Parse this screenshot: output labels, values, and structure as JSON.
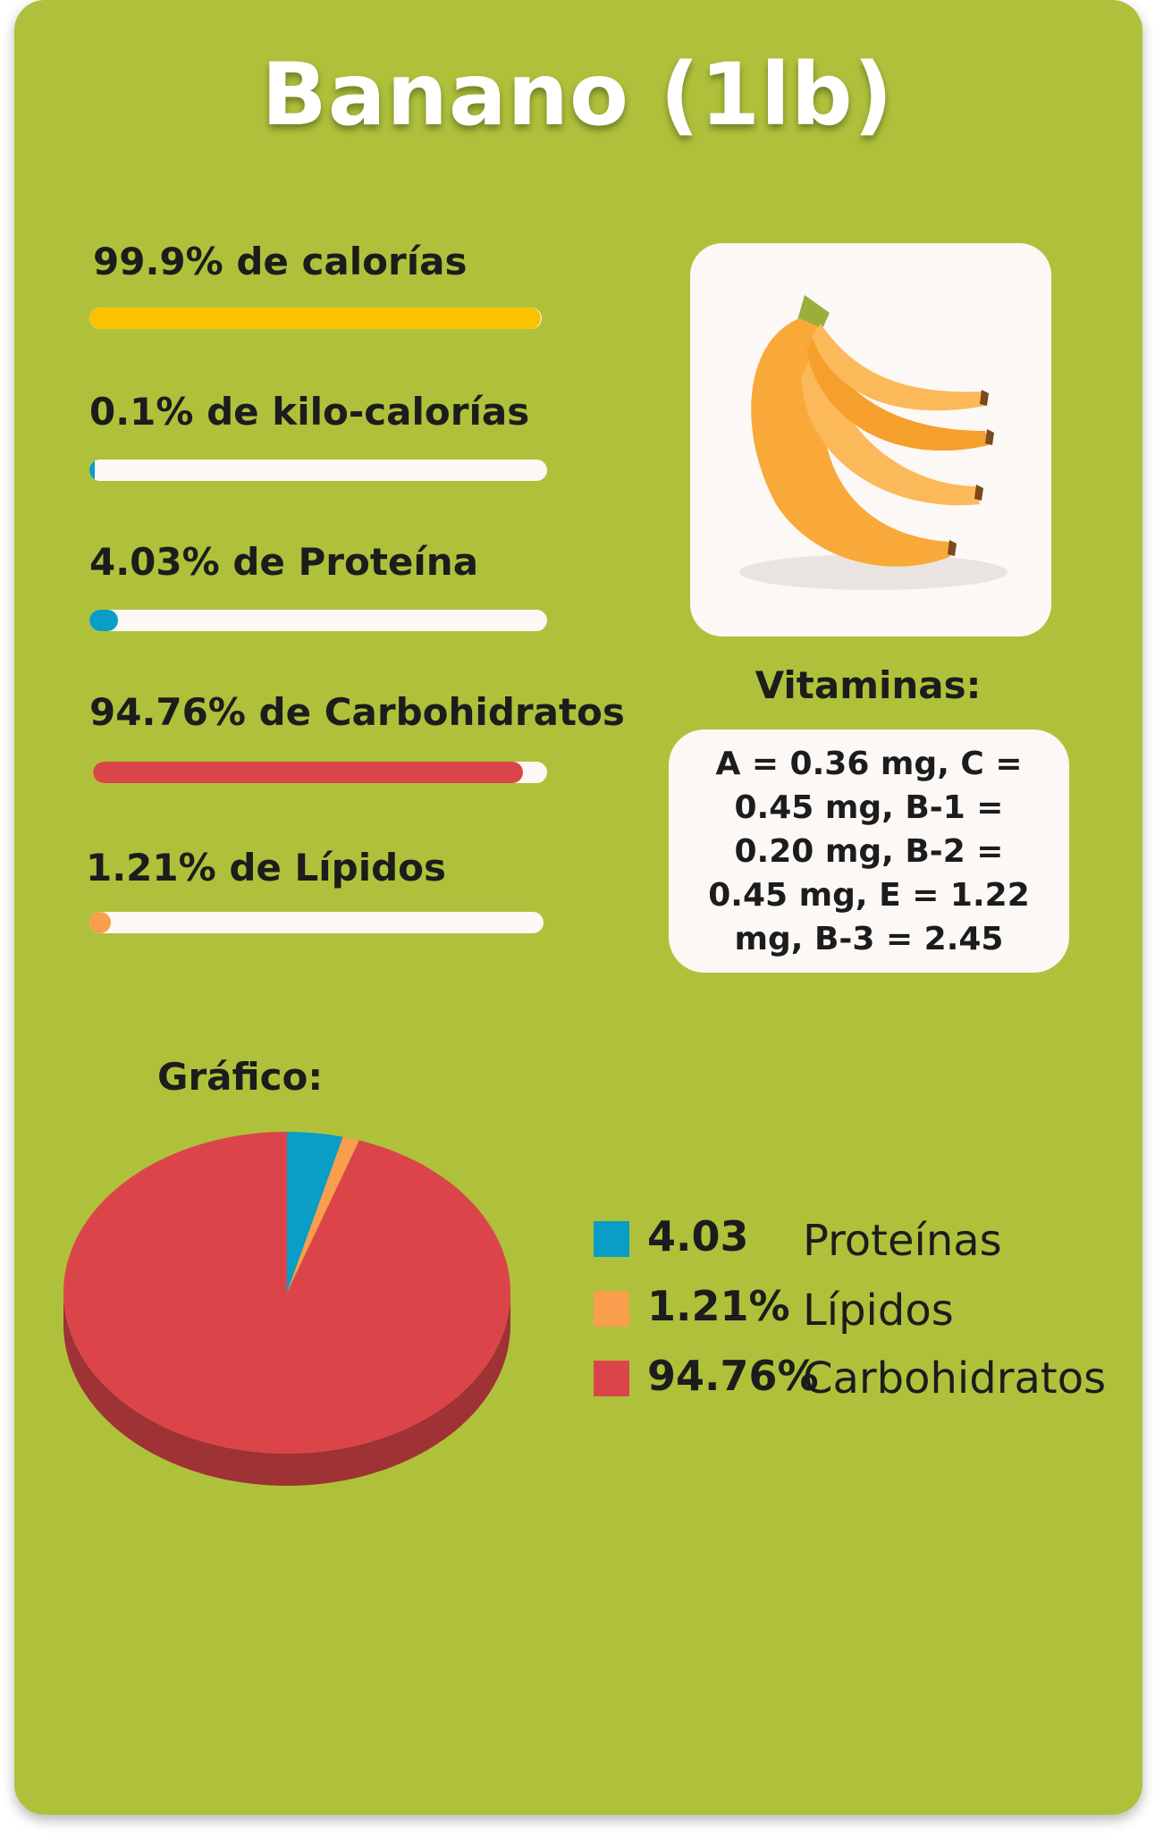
{
  "title": "Banano (1lb)",
  "colors": {
    "background": "#afc13b",
    "panel": "#fbf8f5",
    "calories": "#fcc200",
    "kilocalories": "#0a9dc5",
    "protein": "#0a9dc5",
    "carbs": "#db4549",
    "lipids": "#f89e4c"
  },
  "stats": [
    {
      "label": "99.9% de calorías",
      "percent": 99.9
    },
    {
      "label": "0.1% de kilo-calorías",
      "percent": 0.1
    },
    {
      "label": "4.03% de Proteína",
      "percent": 4.03
    },
    {
      "label": "94.76% de Carbohidratos",
      "percent": 94.76
    },
    {
      "label": "1.21% de Lípidos",
      "percent": 1.21
    }
  ],
  "image": {
    "icon": "banana-bunch-icon"
  },
  "vitamins": {
    "heading": "Vitaminas:",
    "text": "A = 0.36 mg, C = 0.45 mg, B-1 = 0.20 mg, B-2 = 0.45 mg, E = 1.22 mg, B-3 = 2.45"
  },
  "chart_heading": "Gráfico:",
  "chart_data": {
    "type": "pie",
    "categories": [
      "Proteínas",
      "Lípidos",
      "Carbohidratos"
    ],
    "values": [
      4.03,
      1.21,
      94.76
    ],
    "legend": [
      {
        "value_label": "4.03",
        "name": "Proteínas",
        "color": "#0a9dc5"
      },
      {
        "value_label": "1.21%",
        "name": "Lípidos",
        "color": "#f89e4c"
      },
      {
        "value_label": "94.76%",
        "name": "Carbohidratos",
        "color": "#db4549"
      }
    ],
    "legend_placement": "right"
  }
}
